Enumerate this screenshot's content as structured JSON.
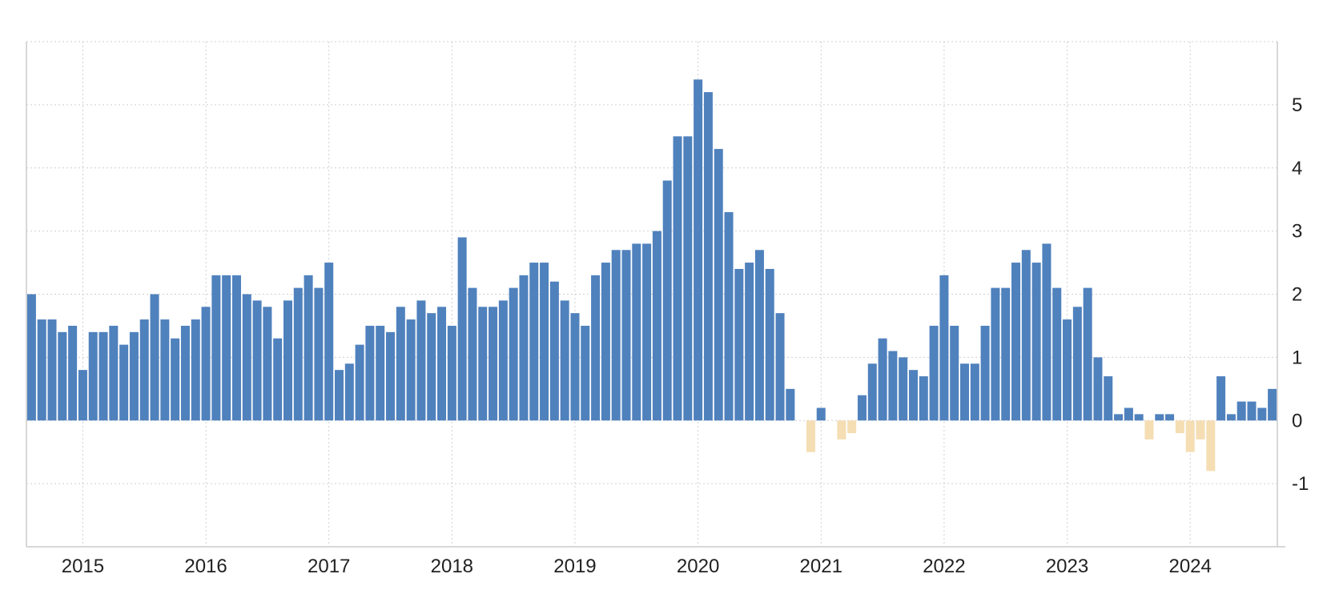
{
  "chart_data": {
    "type": "bar",
    "title": "",
    "xlabel": "",
    "ylabel": "",
    "ylim": [
      -2,
      6
    ],
    "yticks": [
      -1,
      0,
      1,
      2,
      3,
      4,
      5
    ],
    "ytick_labels": [
      "-1",
      "0",
      "1",
      "2",
      "3",
      "4",
      "5"
    ],
    "x_start": "2014-08",
    "frequency": "monthly",
    "xticks": [
      {
        "label": "2015",
        "date": "2015-01"
      },
      {
        "label": "2016",
        "date": "2016-01"
      },
      {
        "label": "2017",
        "date": "2017-01"
      },
      {
        "label": "2018",
        "date": "2018-01"
      },
      {
        "label": "2019",
        "date": "2019-01"
      },
      {
        "label": "2020",
        "date": "2020-01"
      },
      {
        "label": "2021",
        "date": "2021-01"
      },
      {
        "label": "2022",
        "date": "2022-01"
      },
      {
        "label": "2023",
        "date": "2023-01"
      },
      {
        "label": "2024",
        "date": "2024-01"
      }
    ],
    "grid": true,
    "y_axis_side": "right",
    "colors": {
      "positive": "#4f81bd",
      "negative": "#f5deb3"
    },
    "values": [
      2.0,
      1.6,
      1.6,
      1.4,
      1.5,
      0.8,
      1.4,
      1.4,
      1.5,
      1.2,
      1.4,
      1.6,
      2.0,
      1.6,
      1.3,
      1.5,
      1.6,
      1.8,
      2.3,
      2.3,
      2.3,
      2.0,
      1.9,
      1.8,
      1.3,
      1.9,
      2.1,
      2.3,
      2.1,
      2.5,
      0.8,
      0.9,
      1.2,
      1.5,
      1.5,
      1.4,
      1.8,
      1.6,
      1.9,
      1.7,
      1.8,
      1.5,
      2.9,
      2.1,
      1.8,
      1.8,
      1.9,
      2.1,
      2.3,
      2.5,
      2.5,
      2.2,
      1.9,
      1.7,
      1.5,
      2.3,
      2.5,
      2.7,
      2.7,
      2.8,
      2.8,
      3.0,
      3.8,
      4.5,
      4.5,
      5.4,
      5.2,
      4.3,
      3.3,
      2.4,
      2.5,
      2.7,
      2.4,
      1.7,
      0.5,
      0.0,
      -0.5,
      0.2,
      0.0,
      -0.3,
      -0.2,
      0.4,
      0.9,
      1.3,
      1.1,
      1.0,
      0.8,
      0.7,
      1.5,
      2.3,
      1.5,
      0.9,
      0.9,
      1.5,
      2.1,
      2.1,
      2.5,
      2.7,
      2.5,
      2.8,
      2.1,
      1.6,
      1.8,
      2.1,
      1.0,
      0.7,
      0.1,
      0.2,
      0.1,
      -0.3,
      0.1,
      0.1,
      -0.2,
      -0.5,
      -0.3,
      -0.8,
      0.7,
      0.1,
      0.3,
      0.3,
      0.2,
      0.5
    ]
  }
}
